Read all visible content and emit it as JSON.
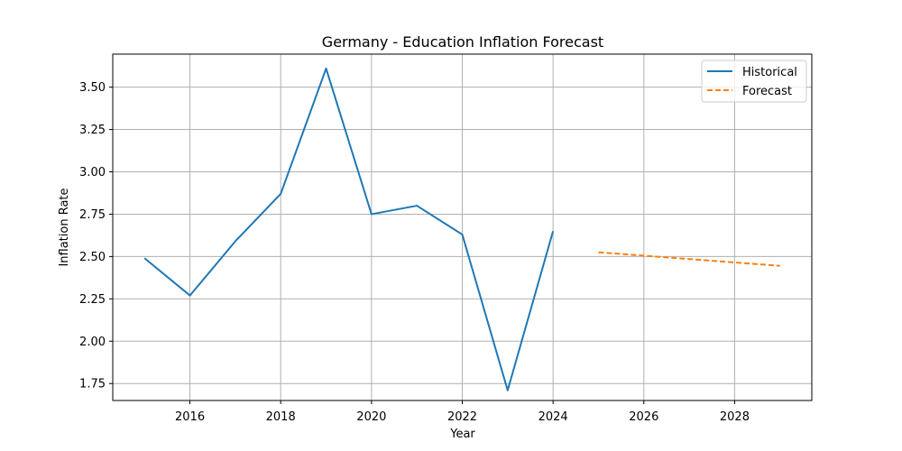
{
  "chart_data": {
    "type": "line",
    "title": "Germany - Education Inflation Forecast",
    "xlabel": "Year",
    "ylabel": "Inflation Rate",
    "xlim": [
      2014.3,
      2029.7
    ],
    "ylim": [
      1.65,
      3.695
    ],
    "x_ticks": [
      2016,
      2018,
      2020,
      2022,
      2024,
      2026,
      2028
    ],
    "y_ticks": [
      1.75,
      2.0,
      2.25,
      2.5,
      2.75,
      3.0,
      3.25,
      3.5
    ],
    "grid": true,
    "legend_position": "top-right",
    "series": [
      {
        "name": "Historical",
        "style": "solid",
        "color": "#1f77b4",
        "x": [
          2015,
          2016,
          2017,
          2018,
          2019,
          2020,
          2021,
          2022,
          2023,
          2024
        ],
        "values": [
          2.49,
          2.27,
          2.59,
          2.87,
          3.61,
          2.75,
          2.8,
          2.63,
          1.71,
          2.65
        ]
      },
      {
        "name": "Forecast",
        "style": "dashed",
        "color": "#ff7f0e",
        "x": [
          2025,
          2026,
          2027,
          2028,
          2029
        ],
        "values": [
          2.525,
          2.505,
          2.485,
          2.465,
          2.445
        ]
      }
    ]
  }
}
